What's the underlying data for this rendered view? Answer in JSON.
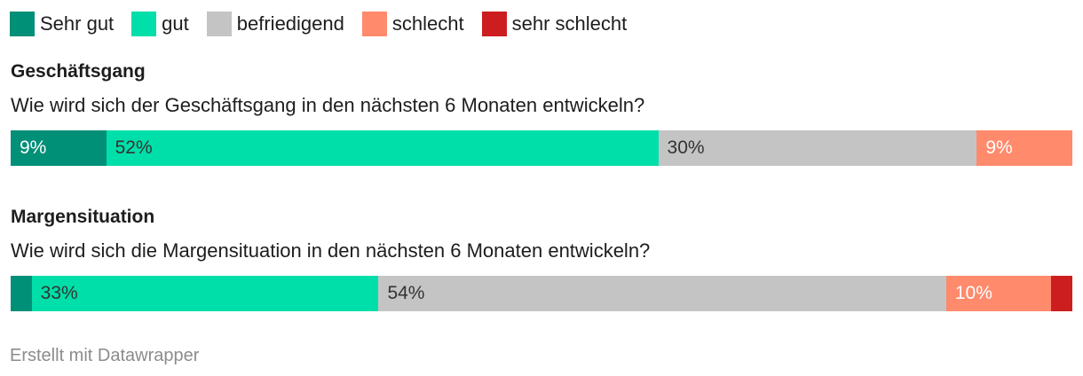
{
  "chart_data": {
    "type": "bar",
    "orientation": "horizontal",
    "stacked": true,
    "normalized": true,
    "legend_position": "top",
    "categories_legend": [
      {
        "key": "sehr_gut",
        "label": "Sehr gut",
        "color": "#008f77",
        "text_color": "#ffffff"
      },
      {
        "key": "gut",
        "label": "gut",
        "color": "#00dfa9",
        "text_color": "#333333"
      },
      {
        "key": "befriedigend",
        "label": "befriedigend",
        "color": "#c4c4c4",
        "text_color": "#333333"
      },
      {
        "key": "schlecht",
        "label": "schlecht",
        "color": "#ff8a6c",
        "text_color": "#ffffff"
      },
      {
        "key": "sehr_schlecht",
        "label": "sehr schlecht",
        "color": "#cc1e1e",
        "text_color": "#ffffff"
      }
    ],
    "charts": [
      {
        "title": "Geschäftsgang",
        "question": "Wie wird sich der Geschäftsgang in den nächsten 6 Monaten entwickeln?",
        "values": [
          9,
          52,
          30,
          9,
          0
        ],
        "labels": [
          "9%",
          "52%",
          "30%",
          "9%",
          ""
        ]
      },
      {
        "title": "Margensituation",
        "question": "Wie wird sich die Margensituation in den nächsten 6 Monaten entwickeln?",
        "values": [
          2,
          33,
          54,
          10,
          2
        ],
        "labels": [
          "",
          "33%",
          "54%",
          "10%",
          ""
        ]
      }
    ]
  },
  "footer": {
    "credit": "Erstellt mit Datawrapper"
  }
}
